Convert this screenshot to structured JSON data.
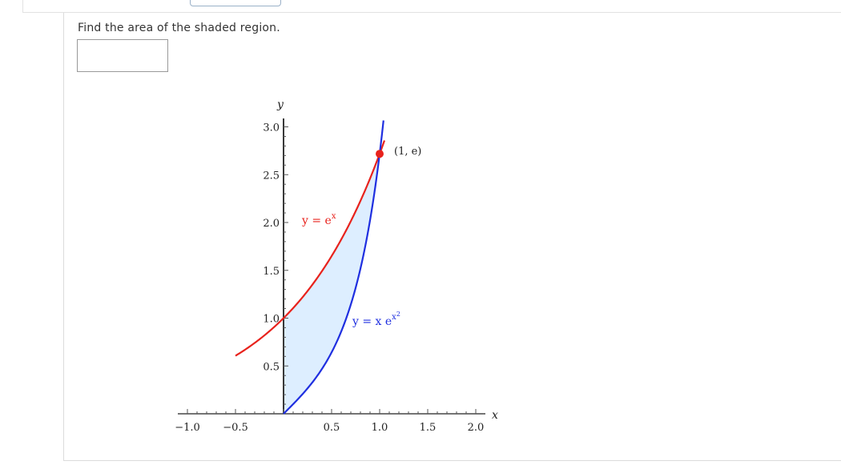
{
  "question": {
    "prompt": "Find the area of the shaded region.",
    "answer_value": ""
  },
  "figure": {
    "axis_x_label": "x",
    "axis_y_label": "y",
    "x_ticks": [
      "-1.0",
      "-0.5",
      "0.5",
      "1.0",
      "1.5",
      "2.0"
    ],
    "y_ticks": [
      "0.5",
      "1.0",
      "1.5",
      "2.0",
      "2.5",
      "3.0"
    ],
    "curve_exp_label": "y = e",
    "curve_exp_sup": "x",
    "curve_xex2_label": "y = x e",
    "curve_xex2_sup": "x",
    "curve_xex2_sup2": "2",
    "point_label": "(1, e)",
    "colors": {
      "exp_curve": "#e8221c",
      "xex2_curve": "#1f2fe0",
      "shade": "#ddeeff",
      "point": "#e8221c"
    }
  },
  "chart_data": {
    "type": "line",
    "title": "",
    "xlabel": "x",
    "ylabel": "y",
    "xlim": [
      -1.0,
      2.0
    ],
    "ylim": [
      0,
      3.0
    ],
    "series": [
      {
        "name": "y = e^x",
        "function": "e^x",
        "x_domain": [
          -0.5,
          1.05
        ]
      },
      {
        "name": "y = x e^(x^2)",
        "function": "x*e^(x^2)",
        "x_domain": [
          0,
          1.04
        ]
      }
    ],
    "shaded_region": {
      "between": [
        "y = e^x",
        "y = x e^(x^2)"
      ],
      "x_range": [
        0,
        1
      ]
    },
    "points": [
      {
        "x": 1,
        "y": 2.718,
        "label": "(1, e)"
      }
    ]
  }
}
